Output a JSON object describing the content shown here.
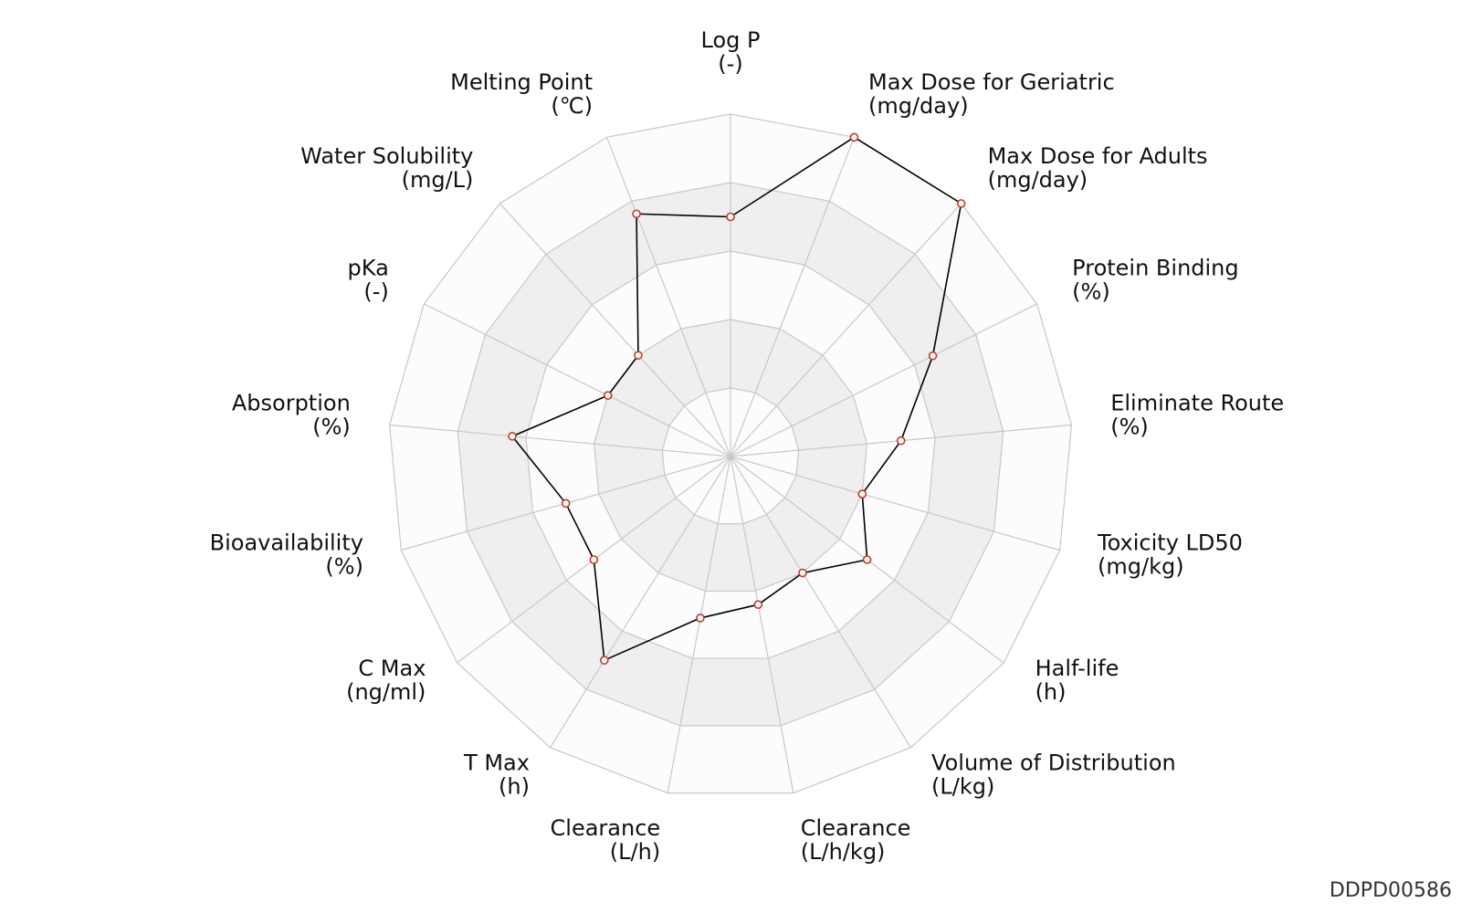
{
  "footer": {
    "id": "DDPD00586"
  },
  "chart_data": {
    "type": "radar",
    "title": "",
    "range": [
      0,
      5
    ],
    "ring_count": 5,
    "ring_fill_colors": [
      "#fcfcfc",
      "#efefef"
    ],
    "grid_color": "#c8c8c8",
    "line_color": "#000000",
    "marker_edge_color": "#c0392b",
    "marker_face_color": "#ffffff",
    "axes": [
      {
        "name": "Log P",
        "unit": "(-)",
        "value": 3.5
      },
      {
        "name": "Max Dose for Geriatric",
        "unit": "(mg/day)",
        "value": 5.0
      },
      {
        "name": "Max Dose for Adults",
        "unit": "(mg/day)",
        "value": 5.0
      },
      {
        "name": "Protein Binding",
        "unit": "(%)",
        "value": 3.3
      },
      {
        "name": "Eliminate Route",
        "unit": "(%)",
        "value": 2.5
      },
      {
        "name": "Toxicity LD50",
        "unit": "(mg/kg)",
        "value": 2.0
      },
      {
        "name": "Half-life",
        "unit": "(h)",
        "value": 2.5
      },
      {
        "name": "Volume of Distribution",
        "unit": "(L/kg)",
        "value": 2.0
      },
      {
        "name": "Clearance",
        "unit": "(L/h/kg)",
        "value": 2.2
      },
      {
        "name": "Clearance",
        "unit": "(L/h)",
        "value": 2.4
      },
      {
        "name": "T Max",
        "unit": "(h)",
        "value": 3.5
      },
      {
        "name": "C Max",
        "unit": "(ng/ml)",
        "value": 2.5
      },
      {
        "name": "Bioavailability",
        "unit": "(%)",
        "value": 2.5
      },
      {
        "name": "Absorption",
        "unit": "(%)",
        "value": 3.2
      },
      {
        "name": "pKa",
        "unit": "(-)",
        "value": 2.0
      },
      {
        "name": "Water Solubility",
        "unit": "(mg/L)",
        "value": 2.0
      },
      {
        "name": "Melting Point",
        "unit": "(℃)",
        "value": 3.8
      }
    ]
  }
}
